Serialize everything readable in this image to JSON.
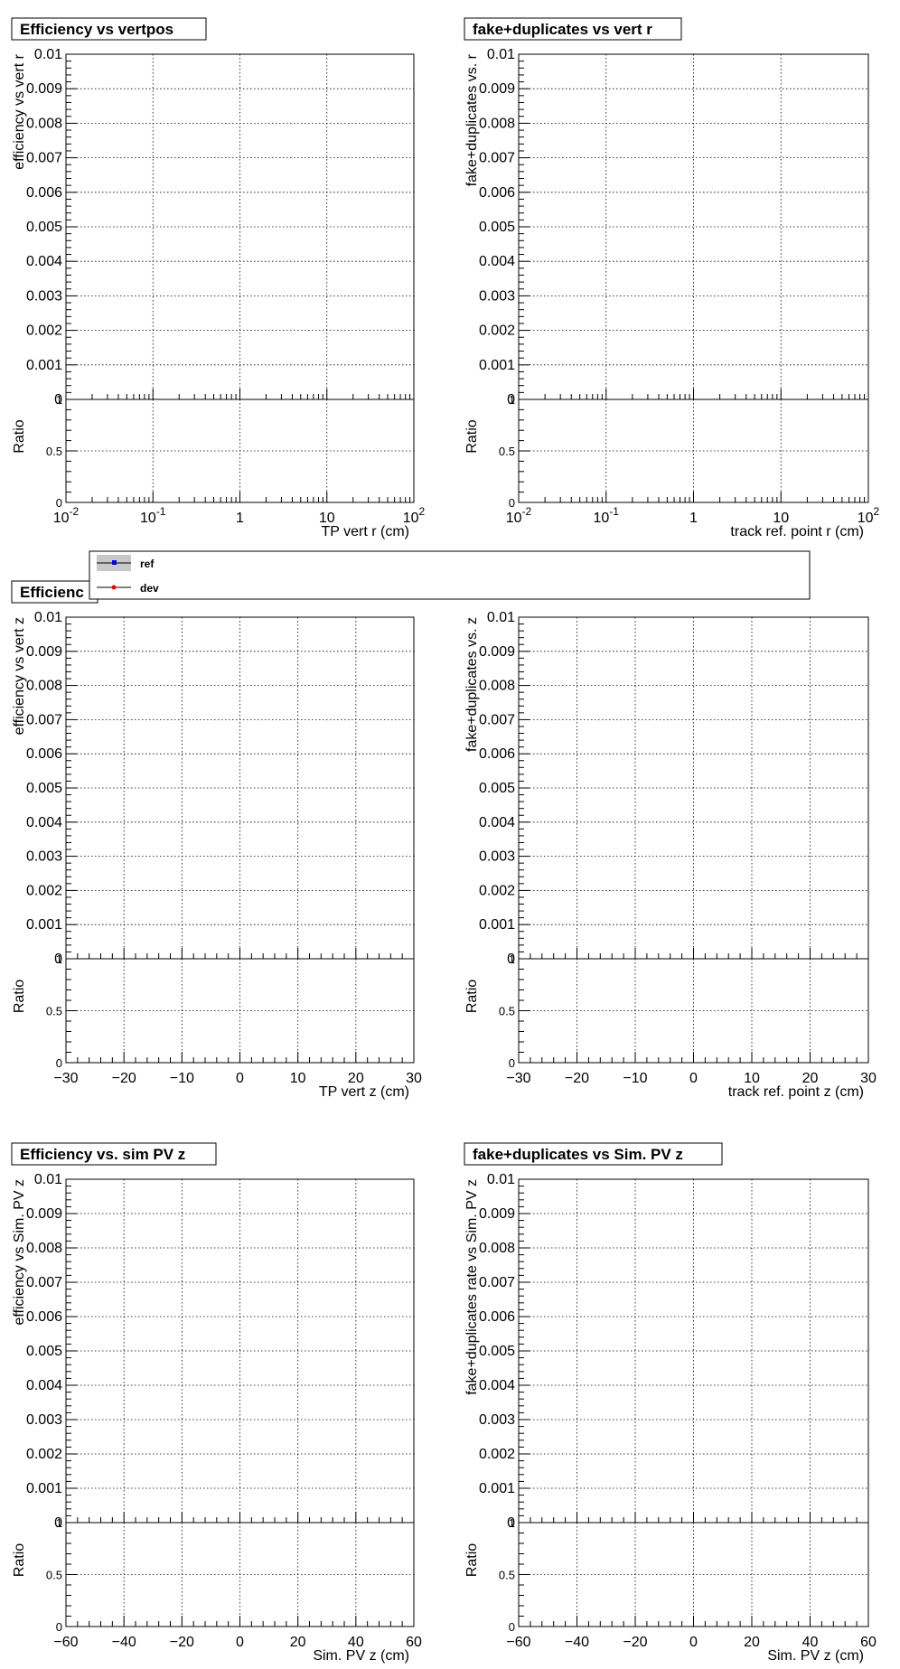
{
  "legend": {
    "entries": [
      {
        "label": "ref",
        "color": "#0000ff",
        "band_color": "#c8c8c8"
      },
      {
        "label": "dev",
        "color": "#ff0000"
      }
    ]
  },
  "chart_data": [
    {
      "type": "line",
      "title": "Efficiency vs vertpos",
      "xlabel": "TP vert r (cm)",
      "ylabel": "efficiency vs vert r",
      "ratio_label": "Ratio",
      "x_scale": "log",
      "xlim": [
        0.01,
        100
      ],
      "x_tick_labels": [
        "10^-2",
        "10^-1",
        "1",
        "10",
        "10^2"
      ],
      "ylim": [
        0,
        0.01
      ],
      "y_tick_labels": [
        "0",
        "0.001",
        "0.002",
        "0.003",
        "0.004",
        "0.005",
        "0.006",
        "0.007",
        "0.008",
        "0.009",
        "0.01"
      ],
      "ratio_ylim": [
        0,
        1
      ],
      "ratio_tick_labels": [
        "0",
        "0.5",
        "1"
      ],
      "grid": true,
      "series": [
        {
          "name": "ref",
          "x": [],
          "y": []
        },
        {
          "name": "dev",
          "x": [],
          "y": []
        }
      ]
    },
    {
      "type": "line",
      "title": "fake+duplicates vs vert r",
      "xlabel": "track ref. point r (cm)",
      "ylabel": "fake+duplicates vs. r",
      "ratio_label": "Ratio",
      "x_scale": "log",
      "xlim": [
        0.01,
        100
      ],
      "x_tick_labels": [
        "10^-2",
        "10^-1",
        "1",
        "10",
        "10^2"
      ],
      "ylim": [
        0,
        0.01
      ],
      "y_tick_labels": [
        "0",
        "0.001",
        "0.002",
        "0.003",
        "0.004",
        "0.005",
        "0.006",
        "0.007",
        "0.008",
        "0.009",
        "0.01"
      ],
      "ratio_ylim": [
        0,
        1
      ],
      "ratio_tick_labels": [
        "0",
        "0.5",
        "1"
      ],
      "grid": true,
      "series": [
        {
          "name": "ref",
          "x": [],
          "y": []
        },
        {
          "name": "dev",
          "x": [],
          "y": []
        }
      ]
    },
    {
      "type": "line",
      "title": "Efficienc",
      "xlabel": "TP vert z (cm)",
      "ylabel": "efficiency vs vert z",
      "ratio_label": "Ratio",
      "x_scale": "linear",
      "xlim": [
        -30,
        30
      ],
      "x_tick_labels": [
        "−30",
        "−20",
        "−10",
        "0",
        "10",
        "20",
        "30"
      ],
      "ylim": [
        0,
        0.01
      ],
      "y_tick_labels": [
        "0",
        "0.001",
        "0.002",
        "0.003",
        "0.004",
        "0.005",
        "0.006",
        "0.007",
        "0.008",
        "0.009",
        "0.01"
      ],
      "ratio_ylim": [
        0,
        1
      ],
      "ratio_tick_labels": [
        "0",
        "0.5",
        "1"
      ],
      "grid": true,
      "series": [
        {
          "name": "ref",
          "x": [],
          "y": []
        },
        {
          "name": "dev",
          "x": [],
          "y": []
        }
      ]
    },
    {
      "type": "line",
      "title": "",
      "xlabel": "track ref. point z (cm)",
      "ylabel": "fake+duplicates vs. z",
      "ratio_label": "Ratio",
      "x_scale": "linear",
      "xlim": [
        -30,
        30
      ],
      "x_tick_labels": [
        "−30",
        "−20",
        "−10",
        "0",
        "10",
        "20",
        "30"
      ],
      "ylim": [
        0,
        0.01
      ],
      "y_tick_labels": [
        "0",
        "0.001",
        "0.002",
        "0.003",
        "0.004",
        "0.005",
        "0.006",
        "0.007",
        "0.008",
        "0.009",
        "0.01"
      ],
      "ratio_ylim": [
        0,
        1
      ],
      "ratio_tick_labels": [
        "0",
        "0.5",
        "1"
      ],
      "grid": true,
      "series": [
        {
          "name": "ref",
          "x": [],
          "y": []
        },
        {
          "name": "dev",
          "x": [],
          "y": []
        }
      ]
    },
    {
      "type": "line",
      "title": "Efficiency vs. sim PV z",
      "xlabel": "Sim. PV z (cm)",
      "ylabel": "efficiency vs Sim. PV z",
      "ratio_label": "Ratio",
      "x_scale": "linear",
      "xlim": [
        -60,
        60
      ],
      "x_tick_labels": [
        "−60",
        "−40",
        "−20",
        "0",
        "20",
        "40",
        "60"
      ],
      "ylim": [
        0,
        0.01
      ],
      "y_tick_labels": [
        "0",
        "0.001",
        "0.002",
        "0.003",
        "0.004",
        "0.005",
        "0.006",
        "0.007",
        "0.008",
        "0.009",
        "0.01"
      ],
      "ratio_ylim": [
        0,
        1
      ],
      "ratio_tick_labels": [
        "0",
        "0.5",
        "1"
      ],
      "grid": true,
      "series": [
        {
          "name": "ref",
          "x": [],
          "y": []
        },
        {
          "name": "dev",
          "x": [],
          "y": []
        }
      ]
    },
    {
      "type": "line",
      "title": "fake+duplicates vs Sim. PV z",
      "xlabel": "Sim. PV z (cm)",
      "ylabel": "fake+duplicates rate vs Sim. PV z",
      "ratio_label": "Ratio",
      "x_scale": "linear",
      "xlim": [
        -60,
        60
      ],
      "x_tick_labels": [
        "−60",
        "−40",
        "−20",
        "0",
        "20",
        "40",
        "60"
      ],
      "ylim": [
        0,
        0.01
      ],
      "y_tick_labels": [
        "0",
        "0.001",
        "0.002",
        "0.003",
        "0.004",
        "0.005",
        "0.006",
        "0.007",
        "0.008",
        "0.009",
        "0.01"
      ],
      "ratio_ylim": [
        0,
        1
      ],
      "ratio_tick_labels": [
        "0",
        "0.5",
        "1"
      ],
      "grid": true,
      "series": [
        {
          "name": "ref",
          "x": [],
          "y": []
        },
        {
          "name": "dev",
          "x": [],
          "y": []
        }
      ]
    }
  ]
}
